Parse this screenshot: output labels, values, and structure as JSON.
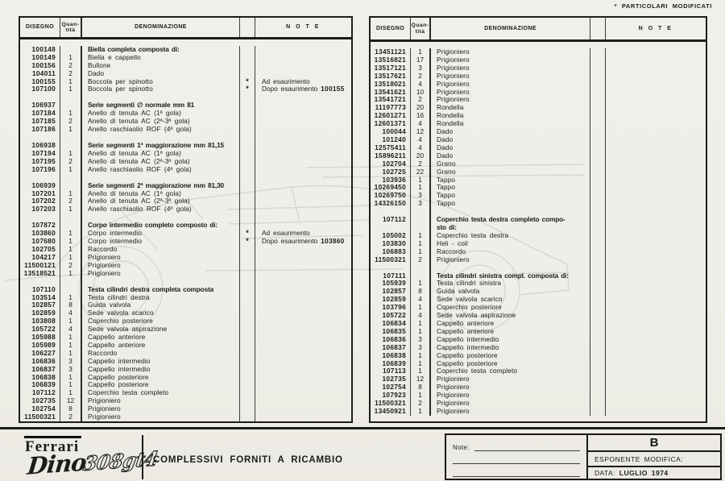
{
  "page": {
    "particolari_note": "*  PARTICOLARI MODIFICATI"
  },
  "table_headers": {
    "disegno": "DISEGNO",
    "quantita": "Quan-\ntità",
    "denominazione": "DENOMINAZIONE",
    "note": "N O T E"
  },
  "left_table": {
    "rows": [
      {
        "d": "100148",
        "q": "",
        "n": "Biella completa composta di:",
        "hd": true
      },
      {
        "d": "100149",
        "q": "1",
        "n": "Biella e cappello"
      },
      {
        "d": "100156",
        "q": "2",
        "n": "Bullone"
      },
      {
        "d": "104011",
        "q": "2",
        "n": "Dado"
      },
      {
        "d": "100155",
        "q": "1",
        "n": "Boccola per spinotto",
        "star": "*",
        "note": "Ad esaurimento"
      },
      {
        "d": "107100",
        "q": "1",
        "n": "Boccola per spinotto",
        "star": "*",
        "note": "Dopo esaurimento",
        "ref": "100155"
      },
      {
        "sp": true
      },
      {
        "d": "106937",
        "q": "",
        "n": "Serie segmenti ∅ normale mm 81",
        "hd": true
      },
      {
        "d": "107184",
        "q": "1",
        "n": "Anello di tenuta AC (1ª gola)"
      },
      {
        "d": "107185",
        "q": "2",
        "n": "Anello di tenuta AC (2ª-3ª gola)"
      },
      {
        "d": "107186",
        "q": "1",
        "n": "Anello raschiaolio ROF (4ª gola)"
      },
      {
        "sp": true
      },
      {
        "d": "106938",
        "q": "",
        "n": "Serie segmenti 1ª maggiorazione mm 81,15",
        "hd": true
      },
      {
        "d": "107194",
        "q": "1",
        "n": "Anello di tenuta AC (1ª gola)"
      },
      {
        "d": "107195",
        "q": "2",
        "n": "Anello di tenuta AC (2ª-3ª gola)"
      },
      {
        "d": "107196",
        "q": "1",
        "n": "Anello raschiaolio ROF (4ª gola)"
      },
      {
        "sp": true
      },
      {
        "d": "106939",
        "q": "",
        "n": "Serie segmenti 2ª maggiorazione mm 81,30",
        "hd": true
      },
      {
        "d": "107201",
        "q": "1",
        "n": "Anello di tenuta AC (1ª gola)"
      },
      {
        "d": "107202",
        "q": "2",
        "n": "Anello di tenuta AC (2ª-3ª gola)"
      },
      {
        "d": "107203",
        "q": "1",
        "n": "Anello raschiaolio ROF (4ª gola)"
      },
      {
        "sp": true
      },
      {
        "d": "107872",
        "q": "",
        "n": "Corpo intermedio completo composto di:",
        "hd": true
      },
      {
        "d": "103860",
        "q": "1",
        "n": "Corpo intermedio",
        "star": "*",
        "note": "Ad esaurimento"
      },
      {
        "d": "107680",
        "q": "1",
        "n": "Corpo intermedio",
        "star": "*",
        "note": "Dopo esaurimento",
        "ref": "103860"
      },
      {
        "d": "102705",
        "q": "1",
        "n": "Raccordo"
      },
      {
        "d": "104217",
        "q": "1",
        "n": "Prigioniero"
      },
      {
        "d": "11500121",
        "q": "2",
        "n": "Prigioniero"
      },
      {
        "d": "13518521",
        "q": "1",
        "n": "Prigioniero"
      },
      {
        "sp": true
      },
      {
        "d": "107110",
        "q": "",
        "n": "Testa cilindri destra completa composta",
        "hd": true
      },
      {
        "d": "103514",
        "q": "1",
        "n": "Testa cilindri destra"
      },
      {
        "d": "102857",
        "q": "8",
        "n": "Guida valvola"
      },
      {
        "d": "102859",
        "q": "4",
        "n": "Sede valvola scarico"
      },
      {
        "d": "103808",
        "q": "1",
        "n": "Coperchio posteriore"
      },
      {
        "d": "105722",
        "q": "4",
        "n": "Sede valvola aspirazione"
      },
      {
        "d": "105988",
        "q": "1",
        "n": "Cappello anteriore"
      },
      {
        "d": "105989",
        "q": "1",
        "n": "Cappello anteriore"
      },
      {
        "d": "106227",
        "q": "1",
        "n": "Raccordo"
      },
      {
        "d": "106836",
        "q": "3",
        "n": "Cappello intermedio"
      },
      {
        "d": "106837",
        "q": "3",
        "n": "Cappello intermedio"
      },
      {
        "d": "106838",
        "q": "1",
        "n": "Cappello posteriore"
      },
      {
        "d": "106839",
        "q": "1",
        "n": "Cappello posteriore"
      },
      {
        "d": "107112",
        "q": "1",
        "n": "Coperchio testa completo"
      },
      {
        "d": "102735",
        "q": "12",
        "n": "Prigioniero"
      },
      {
        "d": "102754",
        "q": "8",
        "n": "Prigioniero"
      },
      {
        "d": "11500321",
        "q": "2",
        "n": "Prigioniero"
      }
    ]
  },
  "right_table": {
    "rows": [
      {
        "d": "13451121",
        "q": "1",
        "n": "Prigioniero"
      },
      {
        "d": "13516821",
        "q": "17",
        "n": "Prigioniero"
      },
      {
        "d": "13517121",
        "q": "3",
        "n": "Prigioniero"
      },
      {
        "d": "13517621",
        "q": "2",
        "n": "Prigioniero"
      },
      {
        "d": "13518021",
        "q": "4",
        "n": "Prigioniero"
      },
      {
        "d": "13541621",
        "q": "10",
        "n": "Prigioniero"
      },
      {
        "d": "13541721",
        "q": "2",
        "n": "Prigioniero"
      },
      {
        "d": "11197773",
        "q": "20",
        "n": "Rondella"
      },
      {
        "d": "12601271",
        "q": "16",
        "n": "Rondella"
      },
      {
        "d": "12601371",
        "q": "4",
        "n": "Rondella"
      },
      {
        "d": "100044",
        "q": "12",
        "n": "Dado"
      },
      {
        "d": "101240",
        "q": "4",
        "n": "Dado"
      },
      {
        "d": "12575411",
        "q": "4",
        "n": "Dado"
      },
      {
        "d": "15896211",
        "q": "20",
        "n": "Dado"
      },
      {
        "d": "102704",
        "q": "2",
        "n": "Grano"
      },
      {
        "d": "102725",
        "q": "22",
        "n": "Grano"
      },
      {
        "d": "103936",
        "q": "1",
        "n": "Tappo"
      },
      {
        "d": "10269450",
        "q": "1",
        "n": "Tappo"
      },
      {
        "d": "10269750",
        "q": "3",
        "n": "Tappo"
      },
      {
        "d": "14326150",
        "q": "3",
        "n": "Tappo"
      },
      {
        "sp": true
      },
      {
        "d": "107112",
        "q": "",
        "n": "Coperchio testa destra completo compo-\nsto di:",
        "hd": true
      },
      {
        "d": "105002",
        "q": "1",
        "n": "Coperchio testa destra"
      },
      {
        "d": "103830",
        "q": "1",
        "n": "Heli - coil"
      },
      {
        "d": "106883",
        "q": "1",
        "n": "Raccordo"
      },
      {
        "d": "11500321",
        "q": "2",
        "n": "Prigioniero"
      },
      {
        "sp": true
      },
      {
        "d": "107111",
        "q": "",
        "n": "Testa cilindri sinistra compl. composta di:",
        "hd": true
      },
      {
        "d": "105939",
        "q": "1",
        "n": "Testa cilindri sinistra"
      },
      {
        "d": "102857",
        "q": "8",
        "n": "Guida valvola"
      },
      {
        "d": "102859",
        "q": "4",
        "n": "Sede valvola scarico"
      },
      {
        "d": "103796",
        "q": "1",
        "n": "Coperchio posteriore"
      },
      {
        "d": "105722",
        "q": "4",
        "n": "Sede valvola aspirazione"
      },
      {
        "d": "106834",
        "q": "1",
        "n": "Cappello anteriore"
      },
      {
        "d": "106835",
        "q": "1",
        "n": "Cappello anteriore"
      },
      {
        "d": "106836",
        "q": "3",
        "n": "Cappello intermedio"
      },
      {
        "d": "106837",
        "q": "3",
        "n": "Cappello intermedio"
      },
      {
        "d": "106838",
        "q": "1",
        "n": "Cappello posteriore"
      },
      {
        "d": "106839",
        "q": "1",
        "n": "Cappello posteriore"
      },
      {
        "d": "107113",
        "q": "1",
        "n": "Coperchio testa completo"
      },
      {
        "d": "102735",
        "q": "12",
        "n": "Prigioniero"
      },
      {
        "d": "102754",
        "q": "8",
        "n": "Prigioniero"
      },
      {
        "d": "107923",
        "q": "1",
        "n": "Prigioniero"
      },
      {
        "d": "11500321",
        "q": "2",
        "n": "Prigioniero"
      },
      {
        "d": "13450921",
        "q": "1",
        "n": "Prigioniero"
      }
    ]
  },
  "footer": {
    "brand": "Ferrari",
    "model_script_1": "Dino",
    "model_script_2": "308gt4",
    "title": "COMPLESSIVI FORNITI A RICAMBIO",
    "note_label": "Note:",
    "revision_letter": "B",
    "esponente_label": "ESPONENTE MODIFICA:",
    "data_label": "DATA:",
    "data_value": "LUGLIO 1974"
  }
}
